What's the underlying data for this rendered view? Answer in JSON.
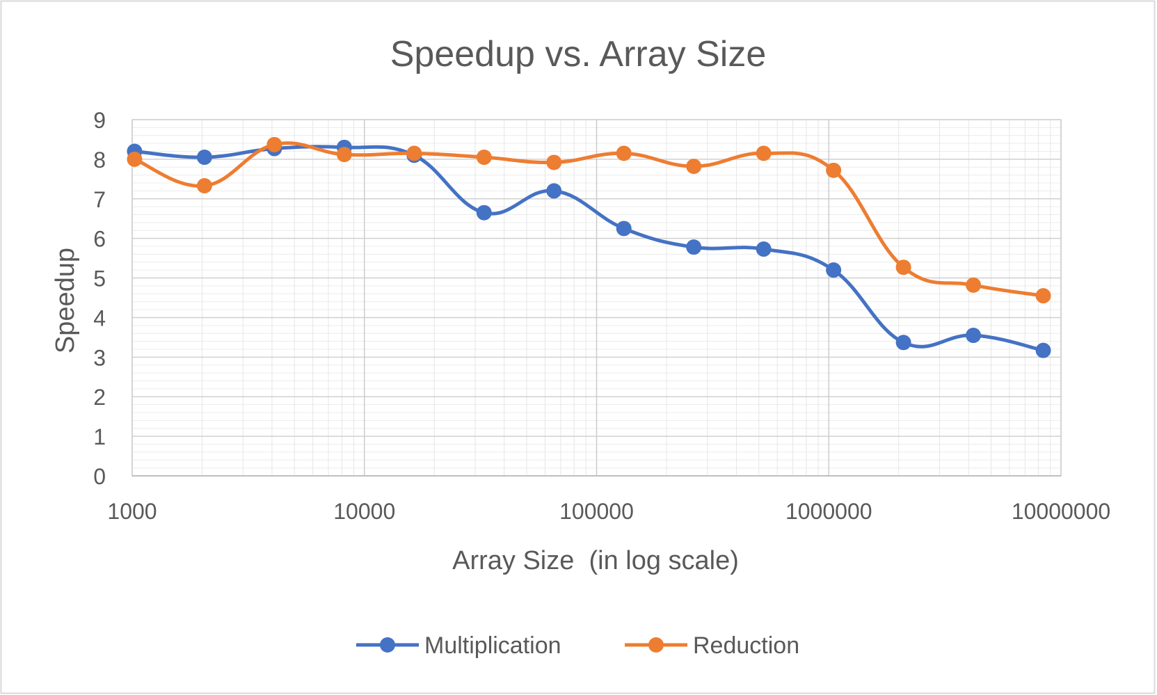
{
  "chart_data": {
    "type": "line",
    "title": "Speedup vs. Array Size",
    "xlabel": "Array Size  (in log scale)",
    "ylabel": "Speedup",
    "x_scale": "log",
    "xlim": [
      1000,
      10000000
    ],
    "ylim": [
      0,
      9
    ],
    "x_ticks": [
      "1000",
      "10000",
      "100000",
      "1000000",
      "10000000"
    ],
    "y_ticks": [
      "0",
      "1",
      "2",
      "3",
      "4",
      "5",
      "6",
      "7",
      "8",
      "9"
    ],
    "grid": true,
    "legend_position": "bottom",
    "x": [
      1024,
      2048,
      4096,
      8192,
      16384,
      32768,
      65536,
      131072,
      262144,
      524288,
      1048576,
      2097152,
      4194304,
      8388608
    ],
    "series": [
      {
        "name": "Multiplication",
        "color": "#4472C4",
        "values": [
          8.2,
          8.05,
          8.27,
          8.3,
          8.1,
          6.65,
          7.2,
          6.25,
          5.78,
          5.73,
          5.2,
          3.37,
          3.55,
          3.17
        ]
      },
      {
        "name": "Reduction",
        "color": "#ED7D31",
        "values": [
          8.0,
          7.33,
          8.37,
          8.12,
          8.15,
          8.05,
          7.92,
          8.15,
          7.82,
          8.15,
          7.72,
          5.27,
          4.82,
          4.55
        ]
      }
    ]
  }
}
